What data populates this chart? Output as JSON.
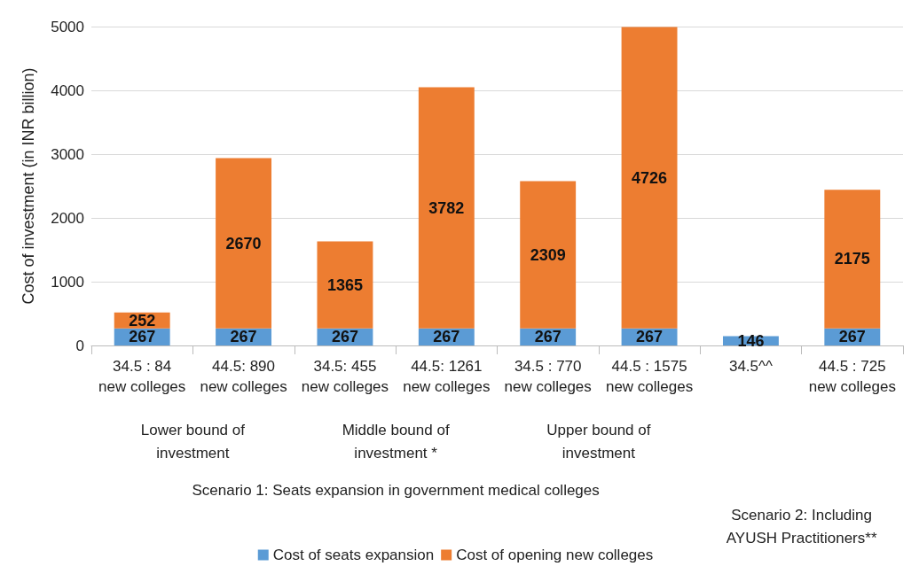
{
  "chart_data": {
    "type": "bar",
    "stacked": true,
    "ylabel": "Cost of investment (in INR billion)",
    "categories": [
      "34.5 : 84\nnew colleges",
      "44.5: 890\nnew colleges",
      "34.5: 455\nnew colleges",
      "44.5: 1261\nnew colleges",
      "34.5 : 770\nnew colleges",
      "44.5 : 1575\nnew colleges",
      "34.5^^",
      "44.5 : 725\nnew colleges"
    ],
    "series": [
      {
        "name": "Cost of seats expansion",
        "color": "#5b9bd5",
        "values": [
          267,
          267,
          267,
          267,
          267,
          267,
          146,
          267
        ]
      },
      {
        "name": "Cost of opening new colleges",
        "color": "#ed7d31",
        "values": [
          252,
          2670,
          1365,
          3782,
          2309,
          4726,
          null,
          2175
        ]
      }
    ],
    "ylim": [
      0,
      5000
    ],
    "yticks": [
      0,
      1000,
      2000,
      3000,
      4000,
      5000
    ],
    "grid": "y",
    "legend": "bottom",
    "data_labels": true,
    "annotations": [
      "Lower bound of\ninvestment",
      "Middle bound of\ninvestment *",
      "Upper bound of\ninvestment",
      "Scenario 1: Seats expansion in government medical colleges",
      "Scenario 2: Including\nAYUSH Practitioners**"
    ]
  }
}
